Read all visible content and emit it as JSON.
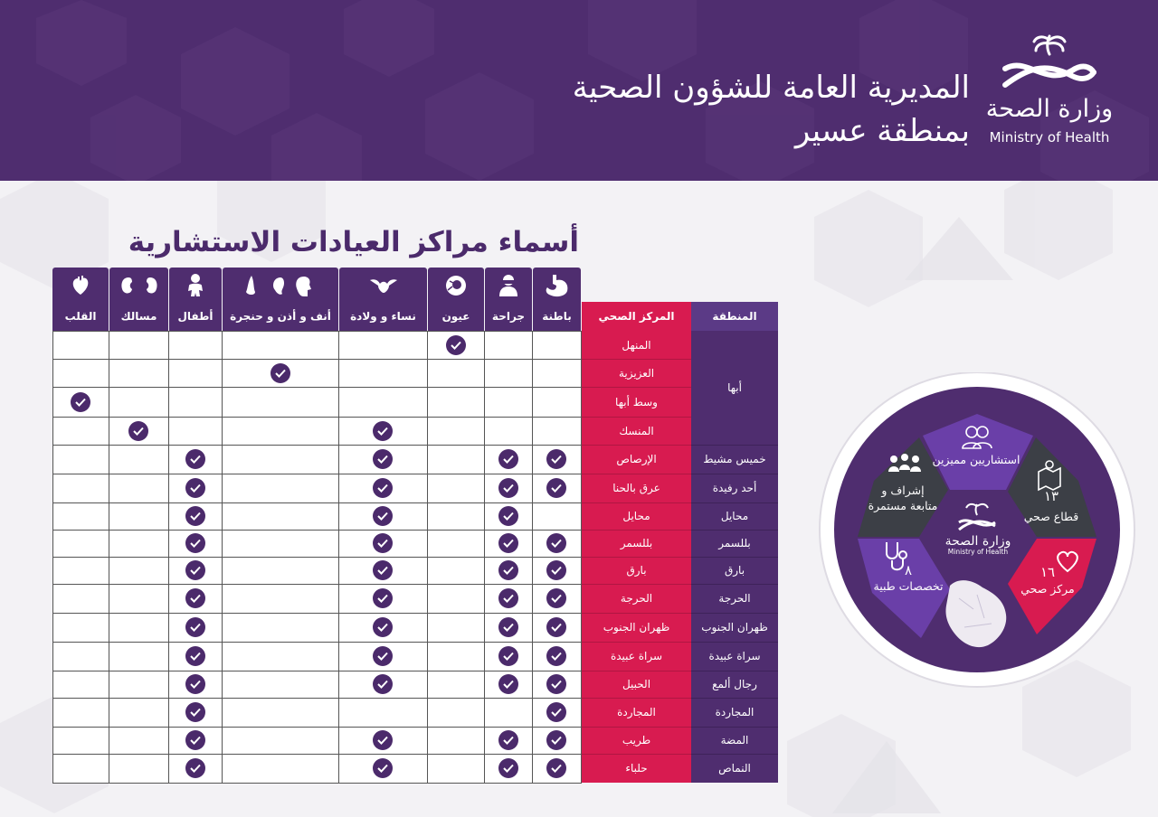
{
  "header": {
    "directorate_line1": "المديرية العامة للشؤون الصحية",
    "directorate_line2": "بمنطقة عسير",
    "logo_ar": "وزارة الصحة",
    "logo_en": "Ministry of Health",
    "bg_color": "#4f2d6f"
  },
  "title": "أسماء مراكز العيادات الاستشارية",
  "table": {
    "region_header": "المنطقة",
    "center_header": "المركز الصحي",
    "specialties": [
      {
        "label": "باطنة",
        "icon": "stomach-icon"
      },
      {
        "label": "جراحة",
        "icon": "surgeon-icon"
      },
      {
        "label": "عيون",
        "icon": "eye-icon"
      },
      {
        "label": "نساء و ولادة",
        "icon": "uterus-icon"
      },
      {
        "label": "أنف و أذن و حنجرة",
        "icon": "ent-icon"
      },
      {
        "label": "أطفال",
        "icon": "baby-icon"
      },
      {
        "label": "مسالك",
        "icon": "kidneys-icon"
      },
      {
        "label": "القلب",
        "icon": "heart-icon"
      }
    ],
    "region_groups": [
      "أبها"
    ],
    "rows": [
      {
        "region": "",
        "center": "المنهل",
        "checks": [
          0,
          0,
          1,
          0,
          0,
          0,
          0,
          0
        ]
      },
      {
        "region": "",
        "center": "العزيزية",
        "checks": [
          0,
          0,
          0,
          0,
          1,
          0,
          0,
          0
        ]
      },
      {
        "region": "",
        "center": "وسط أبها",
        "checks": [
          0,
          0,
          0,
          0,
          0,
          0,
          0,
          1
        ]
      },
      {
        "region": "",
        "center": "المنسك",
        "checks": [
          0,
          0,
          0,
          1,
          0,
          0,
          1,
          0
        ]
      },
      {
        "region": "خميس مشيط",
        "center": "الإرصاص",
        "checks": [
          1,
          1,
          0,
          1,
          0,
          1,
          0,
          0
        ]
      },
      {
        "region": "أحد رفيدة",
        "center": "عرق بالحنا",
        "checks": [
          1,
          1,
          0,
          1,
          0,
          1,
          0,
          0
        ]
      },
      {
        "region": "محايل",
        "center": "محايل",
        "checks": [
          0,
          1,
          0,
          1,
          0,
          1,
          0,
          0
        ]
      },
      {
        "region": "بللسمر",
        "center": "بللسمر",
        "checks": [
          1,
          1,
          0,
          1,
          0,
          1,
          0,
          0
        ]
      },
      {
        "region": "بارق",
        "center": "بارق",
        "checks": [
          1,
          1,
          0,
          1,
          0,
          1,
          0,
          0
        ]
      },
      {
        "region": "الحرجة",
        "center": "الحرجة",
        "checks": [
          1,
          1,
          0,
          1,
          0,
          1,
          0,
          0
        ]
      },
      {
        "region": "ظهران الجنوب",
        "center": "ظهران الجنوب",
        "checks": [
          1,
          1,
          0,
          1,
          0,
          1,
          0,
          0
        ]
      },
      {
        "region": "سراة عبيدة",
        "center": "سراة عبيدة",
        "checks": [
          1,
          1,
          0,
          1,
          0,
          1,
          0,
          0
        ]
      },
      {
        "region": "رجال ألمع",
        "center": "الحبيل",
        "checks": [
          1,
          1,
          0,
          1,
          0,
          1,
          0,
          0
        ]
      },
      {
        "region": "المجاردة",
        "center": "المجاردة",
        "checks": [
          1,
          0,
          0,
          0,
          0,
          1,
          0,
          0
        ]
      },
      {
        "region": "المضة",
        "center": "طريب",
        "checks": [
          1,
          1,
          0,
          1,
          0,
          1,
          0,
          0
        ]
      },
      {
        "region": "النماص",
        "center": "حلباء",
        "checks": [
          1,
          1,
          0,
          1,
          0,
          1,
          0,
          0
        ]
      }
    ],
    "colors": {
      "purple": "#4f2d6f",
      "crimson": "#d81b50",
      "region_purple": "#5b3a86"
    }
  },
  "infographic": {
    "consultants": "استشاريين مميزين",
    "sector_num": "١٣",
    "sector_label": "قطاع صحي",
    "centers_num": "١٦",
    "centers_label": "مركز صحي",
    "specialties_num": "٨",
    "specialties_label": "تخصصات طبية",
    "supervision": "إشراف و متابعة مستمرة",
    "logo_ar": "وزارة الصحة",
    "logo_en": "Ministry of Health",
    "icons": [
      "people-icon",
      "map-icon",
      "heart-outline-icon",
      "stethoscope-icon",
      "group-icon",
      "saudi-map-icon"
    ]
  }
}
